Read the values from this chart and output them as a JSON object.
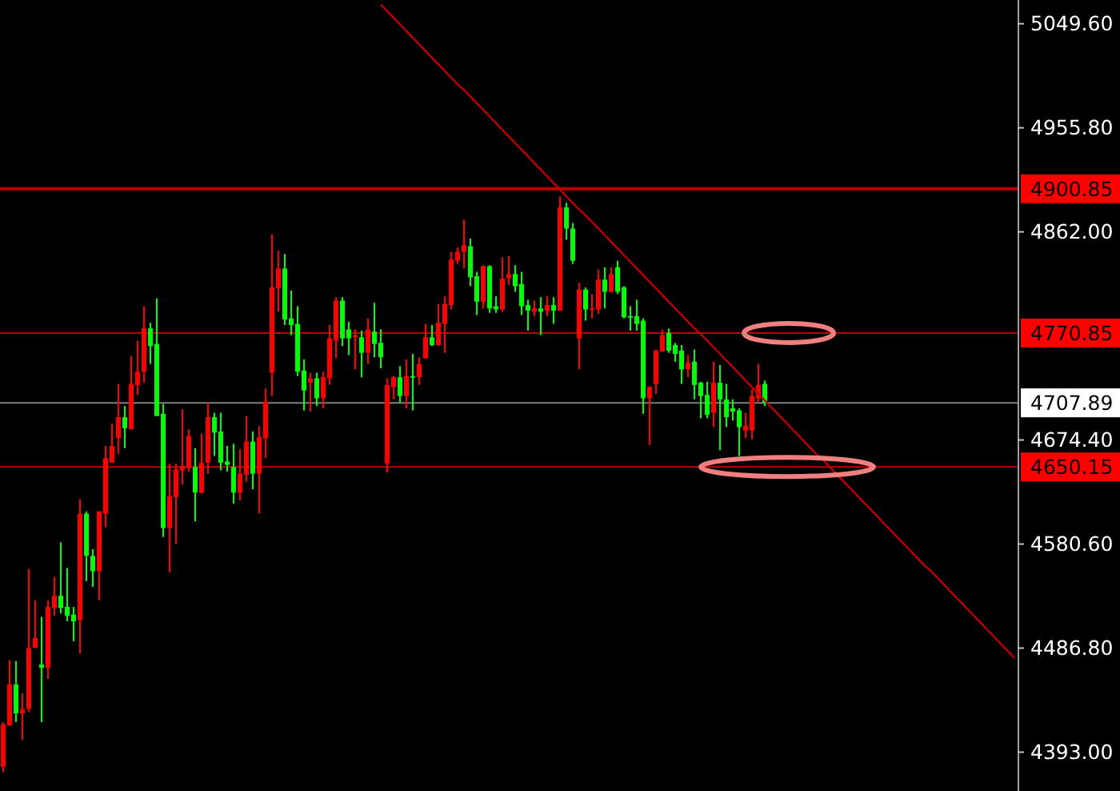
{
  "chart_data": {
    "type": "candlestick",
    "tick_labels": "y",
    "ylim": [
      4358,
      5071
    ],
    "categories": [
      null,
      null,
      null,
      null,
      null,
      null,
      null,
      null,
      null,
      null,
      null,
      null,
      null,
      null,
      null,
      null,
      null,
      null,
      null,
      null,
      null,
      null,
      null,
      null,
      null,
      null,
      null,
      null,
      null,
      null,
      null,
      null,
      null,
      null,
      null,
      null,
      null,
      null,
      null,
      null,
      null,
      null,
      null,
      null,
      null,
      null,
      null,
      null,
      null,
      null,
      null,
      null,
      null,
      null,
      null,
      null,
      null,
      null,
      null,
      null,
      null,
      null,
      null,
      null,
      null,
      null,
      null,
      null,
      null,
      null,
      null,
      null,
      null,
      null,
      null,
      null,
      null,
      null,
      null,
      null,
      null,
      null,
      null,
      null,
      null,
      null,
      null,
      null,
      null,
      null,
      null,
      null,
      null,
      null,
      null,
      null,
      null,
      null,
      null,
      null,
      null,
      null,
      null,
      null,
      null,
      null,
      null,
      null,
      null,
      null,
      null,
      null,
      null,
      null,
      null,
      null,
      null,
      null,
      null,
      null,
      null,
      null,
      null,
      null,
      null,
      null,
      null,
      null,
      null,
      null,
      null,
      null,
      null,
      null,
      null,
      null,
      null,
      null,
      null,
      null,
      null,
      null,
      null,
      null,
      null,
      null,
      null,
      null,
      null,
      null,
      null,
      null,
      null,
      null,
      null,
      null,
      null,
      null,
      null
    ],
    "yticks": [
      {
        "value": 4393,
        "label": "4393.00"
      },
      {
        "value": 4486.8,
        "label": "4486.80"
      },
      {
        "value": 4580.6,
        "label": "4580.60"
      },
      {
        "value": 4674.4,
        "label": "4674.40"
      },
      {
        "value": 4862,
        "label": "4862.00"
      },
      {
        "value": 4955.8,
        "label": "4955.80"
      },
      {
        "value": 5049.6,
        "label": "5049.60"
      }
    ],
    "colors": [
      "#ff0000",
      "#00ff00"
    ],
    "series": [
      {
        "ohlc": [
          [
            4380,
            4420,
            4375,
            4418
          ],
          [
            4417,
            4476,
            4417,
            4454
          ],
          [
            4454,
            4475,
            4420,
            4428
          ],
          [
            4428,
            4446,
            4404,
            4432
          ],
          [
            4432,
            4558,
            4429,
            4487
          ],
          [
            4487,
            4530,
            4487,
            4496
          ],
          [
            4472,
            4515,
            4420,
            4469
          ],
          [
            4469,
            4530,
            4459,
            4524
          ],
          [
            4523,
            4551,
            4516,
            4534
          ],
          [
            4534,
            4582,
            4518,
            4523
          ],
          [
            4524,
            4559,
            4511,
            4516
          ],
          [
            4517,
            4524,
            4493,
            4511
          ],
          [
            4512,
            4621,
            4482,
            4608
          ],
          [
            4608,
            4610,
            4547,
            4570
          ],
          [
            4570,
            4576,
            4542,
            4556
          ],
          [
            4556,
            4610,
            4530,
            4610
          ],
          [
            4608,
            4669,
            4596,
            4658
          ],
          [
            4654,
            4689,
            4654,
            4669
          ],
          [
            4676,
            4725,
            4662,
            4695
          ],
          [
            4695,
            4705,
            4667,
            4685
          ],
          [
            4684,
            4750,
            4684,
            4725
          ],
          [
            4724,
            4764,
            4715,
            4736
          ],
          [
            4736,
            4795,
            4726,
            4775
          ],
          [
            4775,
            4780,
            4743,
            4759
          ],
          [
            4761,
            4802,
            4696,
            4696
          ],
          [
            4698,
            4707,
            4587,
            4595
          ],
          [
            4595,
            4653,
            4555,
            4624
          ],
          [
            4623,
            4653,
            4581,
            4648
          ],
          [
            4647,
            4702,
            4634,
            4651
          ],
          [
            4649,
            4684,
            4646,
            4678
          ],
          [
            4650,
            4667,
            4601,
            4627
          ],
          [
            4627,
            4680,
            4626,
            4654
          ],
          [
            4654,
            4708,
            4644,
            4695
          ],
          [
            4695,
            4699,
            4660,
            4681
          ],
          [
            4682,
            4699,
            4647,
            4654
          ],
          [
            4655,
            4669,
            4646,
            4652
          ],
          [
            4650,
            4671,
            4617,
            4627
          ],
          [
            4627,
            4666,
            4620,
            4644
          ],
          [
            4643,
            4696,
            4637,
            4673
          ],
          [
            4673,
            4682,
            4630,
            4644
          ],
          [
            4644,
            4687,
            4608,
            4677
          ],
          [
            4676,
            4721,
            4658,
            4709
          ],
          [
            4735,
            4860,
            4714,
            4812
          ],
          [
            4811,
            4845,
            4790,
            4829
          ],
          [
            4829,
            4842,
            4778,
            4783
          ],
          [
            4784,
            4809,
            4769,
            4778
          ],
          [
            4779,
            4795,
            4732,
            4736
          ],
          [
            4737,
            4747,
            4701,
            4719
          ],
          [
            4726,
            4735,
            4700,
            4730
          ],
          [
            4730,
            4735,
            4705,
            4712
          ],
          [
            4712,
            4736,
            4703,
            4731
          ],
          [
            4730,
            4778,
            4724,
            4766
          ],
          [
            4764,
            4803,
            4748,
            4800
          ],
          [
            4800,
            4803,
            4759,
            4766
          ],
          [
            4774,
            4781,
            4751,
            4766
          ],
          [
            4767,
            4774,
            4738,
            4769
          ],
          [
            4767,
            4773,
            4731,
            4753
          ],
          [
            4753,
            4784,
            4743,
            4774
          ],
          [
            4772,
            4798,
            4749,
            4761
          ],
          [
            4762,
            4774,
            4739,
            4749
          ],
          [
            4653,
            4730,
            4645,
            4724
          ],
          [
            4722,
            4732,
            4711,
            4731
          ],
          [
            4731,
            4741,
            4708,
            4714
          ],
          [
            4714,
            4747,
            4703,
            4732
          ],
          [
            4732,
            4752,
            4701,
            4731
          ],
          [
            4731,
            4749,
            4724,
            4743
          ],
          [
            4748,
            4779,
            4748,
            4767
          ],
          [
            4767,
            4778,
            4759,
            4760
          ],
          [
            4760,
            4797,
            4759,
            4780
          ],
          [
            4779,
            4804,
            4753,
            4797
          ],
          [
            4796,
            4844,
            4792,
            4837
          ],
          [
            4836,
            4848,
            4833,
            4844
          ],
          [
            4844,
            4873,
            4829,
            4850
          ],
          [
            4849,
            4856,
            4813,
            4821
          ],
          [
            4822,
            4826,
            4787,
            4799
          ],
          [
            4799,
            4832,
            4793,
            4831
          ],
          [
            4831,
            4832,
            4789,
            4793
          ],
          [
            4795,
            4804,
            4789,
            4792
          ],
          [
            4792,
            4839,
            4790,
            4820
          ],
          [
            4820,
            4840,
            4814,
            4824
          ],
          [
            4824,
            4832,
            4808,
            4813
          ],
          [
            4815,
            4826,
            4787,
            4795
          ],
          [
            4796,
            4801,
            4773,
            4791
          ],
          [
            4790,
            4800,
            4786,
            4793
          ],
          [
            4793,
            4803,
            4769,
            4790
          ],
          [
            4791,
            4804,
            4786,
            4796
          ],
          [
            4796,
            4803,
            4779,
            4791
          ],
          [
            4791,
            4894,
            4791,
            4884
          ],
          [
            4884,
            4888,
            4855,
            4865
          ],
          [
            4865,
            4870,
            4833,
            4836
          ],
          [
            4766,
            4816,
            4738,
            4810
          ],
          [
            4810,
            4812,
            4782,
            4792
          ],
          [
            4792,
            4806,
            4784,
            4793
          ],
          [
            4792,
            4828,
            4788,
            4819
          ],
          [
            4819,
            4830,
            4793,
            4808
          ],
          [
            4808,
            4830,
            4807,
            4824
          ],
          [
            4830,
            4836,
            4806,
            4808
          ],
          [
            4812,
            4813,
            4784,
            4785
          ],
          [
            4786,
            4795,
            4773,
            4785
          ],
          [
            4786,
            4801,
            4773,
            4779
          ],
          [
            4782,
            4784,
            4698,
            4712
          ],
          [
            4712,
            4723,
            4670,
            4722
          ],
          [
            4725,
            4756,
            4716,
            4755
          ],
          [
            4754,
            4774,
            4754,
            4769
          ],
          [
            4771,
            4775,
            4753,
            4755
          ],
          [
            4760,
            4762,
            4745,
            4752
          ],
          [
            4755,
            4760,
            4725,
            4738
          ],
          [
            4738,
            4751,
            4731,
            4744
          ],
          [
            4745,
            4756,
            4711,
            4724
          ],
          [
            4726,
            4727,
            4694,
            4714
          ],
          [
            4715,
            4727,
            4694,
            4697
          ],
          [
            4699,
            4745,
            4686,
            4726
          ],
          [
            4726,
            4742,
            4665,
            4711
          ],
          [
            4711,
            4725,
            4686,
            4695
          ],
          [
            4703,
            4711,
            4692,
            4700
          ],
          [
            4701,
            4703,
            4660,
            4686
          ],
          [
            4683,
            4699,
            4676,
            4687
          ],
          [
            4683,
            4720,
            4675,
            4714
          ],
          [
            4712,
            4743,
            4708,
            4724
          ],
          [
            4725,
            4728,
            4705,
            4708
          ],
          null,
          null,
          null,
          null,
          null,
          null,
          null,
          null,
          null,
          null,
          null,
          null,
          null,
          null,
          null,
          null,
          null,
          null,
          null,
          null,
          null,
          null,
          null,
          null,
          null,
          null,
          null,
          null,
          null,
          null,
          null,
          null,
          null,
          null,
          null,
          null,
          null,
          null,
          null
        ]
      },
      {
        "type": "line",
        "color": "#c00000",
        "values": [
          null,
          null,
          null,
          null,
          null,
          null,
          null,
          null,
          null,
          null,
          null,
          null,
          null,
          null,
          null,
          null,
          null,
          null,
          null,
          null,
          null,
          null,
          null,
          null,
          null,
          null,
          null,
          null,
          null,
          null,
          null,
          null,
          null,
          null,
          null,
          null,
          null,
          null,
          null,
          null,
          null,
          null,
          null,
          null,
          null,
          null,
          null,
          null,
          null,
          null,
          null,
          null,
          null,
          null,
          null,
          null,
          null,
          null,
          null,
          5067,
          5061,
          5055,
          5049,
          5043,
          5037,
          5031,
          5025,
          5019,
          5013,
          5007,
          5001,
          4995,
          4990,
          4984,
          4978,
          4972,
          4966,
          4960,
          4954,
          4948,
          4942,
          4936,
          4930,
          4924,
          4918,
          4912,
          4906,
          4900,
          4894,
          4888,
          4882,
          4877,
          4871,
          4865,
          4859,
          4853,
          4847,
          4841,
          4835,
          4829,
          4823,
          4817,
          4811,
          4805,
          4799,
          4793,
          4787,
          4781,
          4775,
          4770,
          4764,
          4758,
          4752,
          4746,
          4740,
          4734,
          4728,
          4722,
          4716,
          4710,
          4704,
          4698,
          4692,
          4686,
          4680,
          4674,
          4668,
          4662,
          4657,
          4651,
          4645,
          4639,
          4633,
          4627,
          4621,
          4615,
          4609,
          4603,
          4597,
          4591,
          4585,
          4579,
          4573,
          4567,
          4561,
          4556,
          4550,
          4544,
          4538,
          4532,
          4526,
          4520,
          4514,
          4508,
          4502,
          4496,
          4490,
          4484,
          4478
        ]
      }
    ],
    "ref_lines": [
      {
        "axis": "y",
        "value": 4900.85,
        "label": "4900.85",
        "color": "#c00000"
      },
      {
        "axis": "y",
        "value": 4770.85,
        "label": "4770.85",
        "color": "#c00000"
      },
      {
        "axis": "y",
        "value": 4707.89,
        "label": "4707.89",
        "color": "#808080"
      },
      {
        "axis": "y",
        "value": 4650.15,
        "label": "4650.15",
        "color": "#c00000"
      }
    ]
  }
}
